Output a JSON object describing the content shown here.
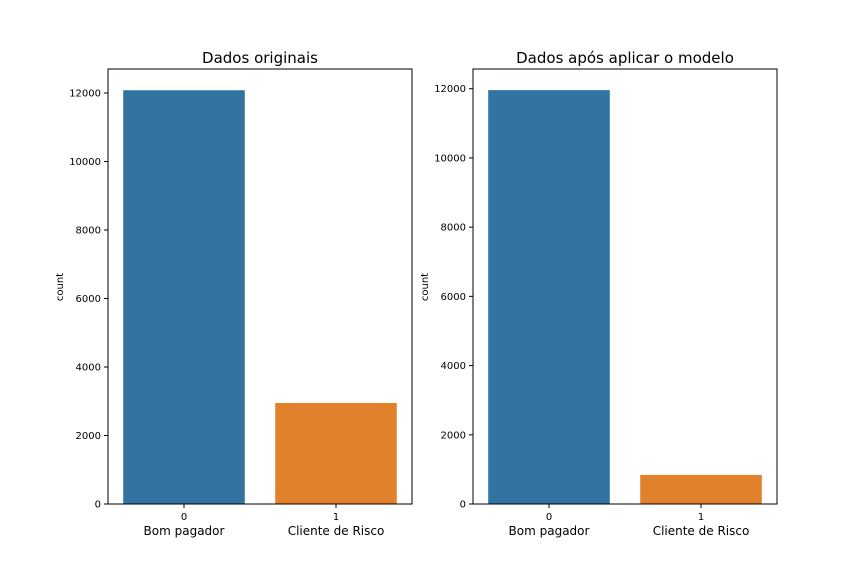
{
  "chart_data": [
    {
      "type": "bar",
      "title": "Dados originais",
      "categories": [
        "0",
        "1"
      ],
      "category_names": [
        "Bom pagador",
        "Cliente de Risco"
      ],
      "values": [
        12080,
        2950
      ],
      "xlabel": "",
      "ylabel": "count",
      "ylim": [
        0,
        12700
      ],
      "yticks": [
        0,
        2000,
        4000,
        6000,
        8000,
        10000,
        12000
      ],
      "colors": [
        "#3274a1",
        "#e1812c"
      ],
      "grid": false
    },
    {
      "type": "bar",
      "title": "Dados após aplicar o modelo",
      "categories": [
        "0",
        "1"
      ],
      "category_names": [
        "Bom pagador",
        "Cliente de Risco"
      ],
      "values": [
        11960,
        840
      ],
      "xlabel": "",
      "ylabel": "count",
      "ylim": [
        0,
        12570
      ],
      "yticks": [
        0,
        2000,
        4000,
        6000,
        8000,
        10000,
        12000
      ],
      "colors": [
        "#3274a1",
        "#e1812c"
      ],
      "grid": false
    }
  ]
}
